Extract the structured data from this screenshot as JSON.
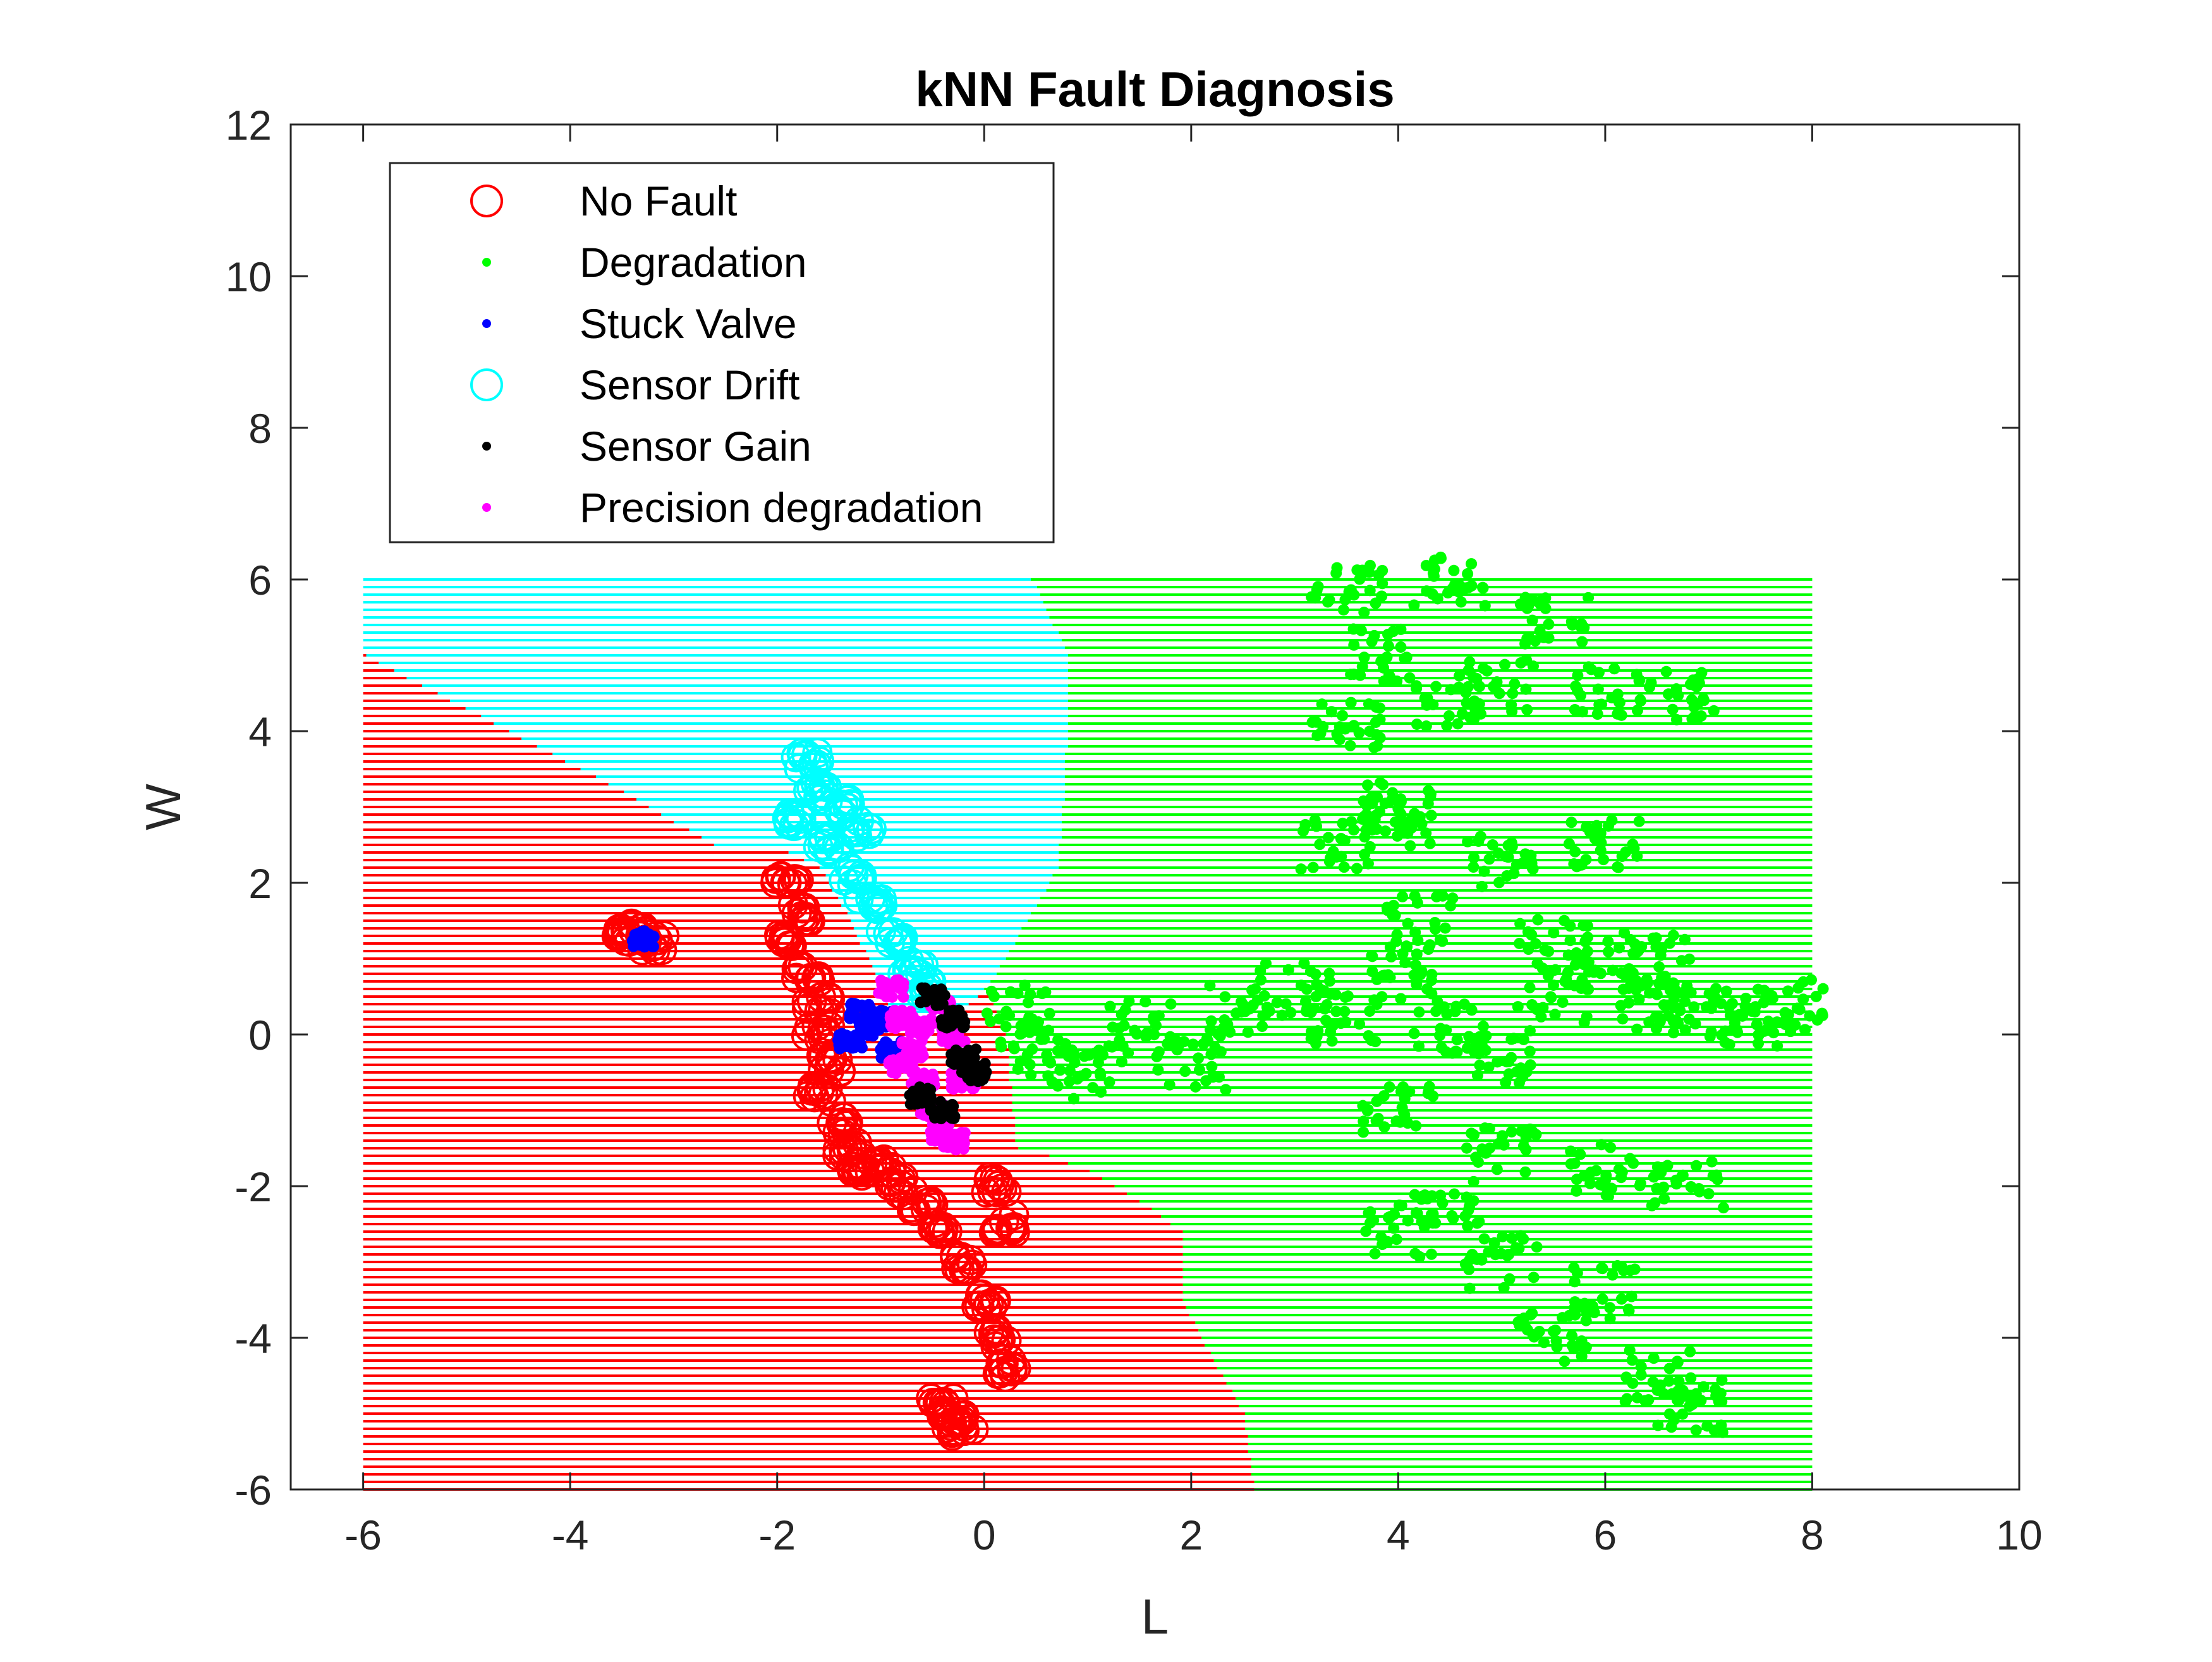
{
  "chart_data": {
    "type": "scatter",
    "title": "kNN Fault Diagnosis",
    "xlabel": "L",
    "ylabel": "W",
    "xlim": [
      -6.7,
      10
    ],
    "ylim": [
      -6,
      12
    ],
    "x_ticks": [
      -6,
      -4,
      -2,
      0,
      2,
      4,
      6,
      8,
      10
    ],
    "y_ticks": [
      -6,
      -4,
      -2,
      0,
      2,
      4,
      6,
      8,
      10,
      12
    ],
    "x_tick_labels": [
      "-6",
      "-4",
      "-2",
      "0",
      "2",
      "4",
      "6",
      "8",
      "10"
    ],
    "y_tick_labels": [
      "-6",
      "-4",
      "-2",
      "0",
      "2",
      "4",
      "6",
      "8",
      "10",
      "12"
    ],
    "legend_position": "top-left",
    "grid": false,
    "colors": {
      "no_fault": "#ff0000",
      "degradation": "#00ff00",
      "stuck_valve": "#0000ff",
      "sensor_drift": "#00ffff",
      "sensor_gain": "#000000",
      "precision_degradation": "#ff00ff"
    },
    "series": [
      {
        "name": "No Fault",
        "marker": "circle",
        "color": "#ff0000",
        "points": [
          [
            -3.4,
            1.3
          ],
          [
            -3.2,
            1.2
          ],
          [
            -3.5,
            1.35
          ],
          [
            -1.9,
            2.0
          ],
          [
            -1.8,
            1.6
          ],
          [
            -1.9,
            1.25
          ],
          [
            -1.7,
            0.8
          ],
          [
            -1.6,
            0.4
          ],
          [
            -1.6,
            0.0
          ],
          [
            -1.5,
            -0.4
          ],
          [
            -1.6,
            -0.8
          ],
          [
            -1.4,
            -1.2
          ],
          [
            -1.2,
            -1.8
          ],
          [
            -1.3,
            -1.5
          ],
          [
            -1.0,
            -1.7
          ],
          [
            -0.8,
            -2.0
          ],
          [
            -0.6,
            -2.3
          ],
          [
            -0.4,
            -2.6
          ],
          [
            -0.2,
            -3.0
          ],
          [
            0.0,
            -3.5
          ],
          [
            0.1,
            -4.0
          ],
          [
            0.2,
            -4.4
          ],
          [
            -0.4,
            -4.9
          ],
          [
            -0.3,
            -5.1
          ],
          [
            -0.2,
            -5.2
          ],
          [
            0.2,
            -2.5
          ],
          [
            0.1,
            -2.0
          ]
        ]
      },
      {
        "name": "Degradation",
        "marker": "dot",
        "color": "#00ff00",
        "points": [
          [
            0.3,
            0.3
          ],
          [
            0.5,
            -0.2
          ],
          [
            1.0,
            -0.5
          ],
          [
            1.5,
            0.1
          ],
          [
            2.0,
            -0.4
          ],
          [
            2.5,
            0.3
          ],
          [
            3.0,
            0.6
          ],
          [
            3.5,
            0.2
          ],
          [
            4.0,
            0.8
          ],
          [
            4.5,
            0.1
          ],
          [
            5.0,
            -0.3
          ],
          [
            5.5,
            0.5
          ],
          [
            6.0,
            0.9
          ],
          [
            6.5,
            0.4
          ],
          [
            7.0,
            0.3
          ],
          [
            7.5,
            0.2
          ],
          [
            7.8,
            0.4
          ],
          [
            3.4,
            2.5
          ],
          [
            4.0,
            2.8
          ],
          [
            5.0,
            2.3
          ],
          [
            6.0,
            2.5
          ],
          [
            3.5,
            4.1
          ],
          [
            4.0,
            3.0
          ],
          [
            4.5,
            4.4
          ],
          [
            5.0,
            4.6
          ],
          [
            6.0,
            4.5
          ],
          [
            6.7,
            4.5
          ],
          [
            3.5,
            5.9
          ],
          [
            4.5,
            6.0
          ],
          [
            5.5,
            5.5
          ],
          [
            3.8,
            5.0
          ],
          [
            4.2,
            1.5
          ],
          [
            5.5,
            1.2
          ],
          [
            6.5,
            1.0
          ],
          [
            4.0,
            -1.0
          ],
          [
            5.0,
            -1.5
          ],
          [
            6.0,
            -1.8
          ],
          [
            6.8,
            -2.0
          ],
          [
            4.5,
            -2.2
          ],
          [
            4.0,
            -2.6
          ],
          [
            5.0,
            -3.0
          ],
          [
            6.0,
            -3.4
          ],
          [
            5.5,
            -4.0
          ],
          [
            6.5,
            -4.5
          ],
          [
            6.8,
            -4.9
          ]
        ]
      },
      {
        "name": "Stuck Valve",
        "marker": "dot",
        "color": "#0000ff",
        "points": [
          [
            -1.2,
            0.3
          ],
          [
            -1.1,
            0.1
          ],
          [
            -1.3,
            -0.1
          ],
          [
            -1.0,
            0.2
          ],
          [
            -0.9,
            -0.2
          ],
          [
            -3.3,
            1.25
          ]
        ]
      },
      {
        "name": "Sensor Drift",
        "marker": "circle",
        "color": "#00ffff",
        "points": [
          [
            -1.7,
            3.6
          ],
          [
            -1.6,
            3.2
          ],
          [
            -1.8,
            2.8
          ],
          [
            -1.5,
            2.5
          ],
          [
            -1.3,
            2.1
          ],
          [
            -1.1,
            1.7
          ],
          [
            -0.9,
            1.3
          ],
          [
            -0.7,
            0.9
          ],
          [
            -0.6,
            0.6
          ],
          [
            -1.4,
            3.0
          ],
          [
            -1.2,
            2.7
          ]
        ]
      },
      {
        "name": "Sensor Gain",
        "marker": "dot",
        "color": "#000000",
        "points": [
          [
            -0.5,
            0.5
          ],
          [
            -0.3,
            0.2
          ],
          [
            -0.2,
            -0.3
          ],
          [
            -0.4,
            -1.0
          ],
          [
            -0.1,
            -0.5
          ],
          [
            -0.6,
            -0.8
          ]
        ]
      },
      {
        "name": "Precision degradation",
        "marker": "dot",
        "color": "#ff00ff",
        "points": [
          [
            -0.9,
            0.6
          ],
          [
            -0.8,
            0.2
          ],
          [
            -0.7,
            -0.2
          ],
          [
            -0.6,
            -0.6
          ],
          [
            -0.5,
            -1.0
          ],
          [
            -0.4,
            -1.3
          ],
          [
            -0.3,
            -1.4
          ],
          [
            -0.4,
            0.4
          ],
          [
            -0.3,
            0.0
          ],
          [
            -0.2,
            -0.6
          ],
          [
            -0.6,
            0.1
          ],
          [
            -0.8,
            -0.4
          ]
        ]
      }
    ],
    "decision_regions": {
      "x_range": [
        -6,
        8
      ],
      "y_range": [
        -6,
        6
      ],
      "line_spacing": 0.1,
      "regions": [
        {
          "class": "Sensor Drift",
          "color": "#00ffff",
          "polygon": [
            [
              -6,
              6
            ],
            [
              0.45,
              6
            ],
            [
              0.8,
              5.0
            ],
            [
              0.8,
              4.2
            ],
            [
              0.75,
              3.0
            ],
            [
              0.7,
              2.2
            ],
            [
              0.4,
              1.5
            ],
            [
              0.2,
              1.0
            ],
            [
              0.0,
              0.6
            ],
            [
              -0.3,
              0.2
            ],
            [
              -0.6,
              0.0
            ],
            [
              -0.9,
              0.3
            ],
            [
              -1.3,
              1.5
            ],
            [
              -1.6,
              2.2
            ],
            [
              -1.9,
              2.4
            ],
            [
              -2.5,
              2.4
            ],
            [
              -3.5,
              3.2
            ],
            [
              -6,
              5.0
            ]
          ]
        },
        {
          "class": "No Fault",
          "color": "#ff0000",
          "polygon": [
            [
              -6,
              5.0
            ],
            [
              -3.5,
              3.2
            ],
            [
              -2.5,
              2.4
            ],
            [
              -1.9,
              2.4
            ],
            [
              -1.6,
              2.2
            ],
            [
              -1.3,
              1.5
            ],
            [
              -0.9,
              0.3
            ],
            [
              -0.6,
              0.0
            ],
            [
              -0.3,
              0.2
            ],
            [
              0.0,
              0.6
            ],
            [
              0.2,
              0.0
            ],
            [
              0.3,
              -1.5
            ],
            [
              0.6,
              -1.6
            ],
            [
              1.0,
              -1.8
            ],
            [
              1.5,
              -2.2
            ],
            [
              1.9,
              -2.6
            ],
            [
              1.9,
              -3.5
            ],
            [
              2.2,
              -4.3
            ],
            [
              2.5,
              -5.0
            ],
            [
              2.6,
              -6.0
            ],
            [
              -6,
              -6.0
            ]
          ]
        }
      ],
      "background_class": "Degradation",
      "background_color": "#00ff00"
    }
  },
  "legend": {
    "items": [
      {
        "label": "No Fault",
        "marker": "circle",
        "color": "#ff0000"
      },
      {
        "label": "Degradation",
        "marker": "dot",
        "color": "#00ff00"
      },
      {
        "label": "Stuck Valve",
        "marker": "dot",
        "color": "#0000ff"
      },
      {
        "label": "Sensor Drift",
        "marker": "circle",
        "color": "#00ffff"
      },
      {
        "label": "Sensor Gain",
        "marker": "dot",
        "color": "#000000"
      },
      {
        "label": "Precision degradation",
        "marker": "dot",
        "color": "#ff00ff"
      }
    ]
  }
}
